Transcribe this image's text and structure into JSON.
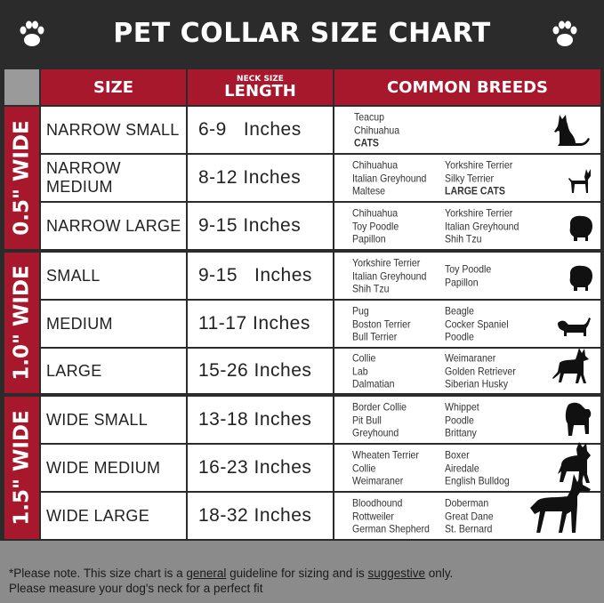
{
  "title": "PET COLLAR SIZE CHART",
  "colors": {
    "header_red": "#a8182c",
    "title_bg": "#2b2b2b",
    "footer_bg": "#8b8b8b"
  },
  "headers": {
    "size": "SIZE",
    "length_small": "NECK SIZE",
    "length": "LENGTH",
    "breeds": "COMMON BREEDS"
  },
  "groups": [
    {
      "label": "0.5\" WIDE"
    },
    {
      "label": "1.0\" WIDE"
    },
    {
      "label": "1.5\" WIDE"
    }
  ],
  "rows": [
    {
      "size": "NARROW SMALL",
      "length": "6-9   Inches",
      "col1": [
        "Teacup",
        "Chihuahua",
        "CATS"
      ],
      "col2": [],
      "icon": "cat-silhouette-icon"
    },
    {
      "size": "NARROW MEDIUM",
      "length": "8-12 Inches",
      "col1": [
        "Chihuahua",
        "Italian Greyhound",
        "Maltese"
      ],
      "col2": [
        "Yorkshire Terrier",
        "Silky Terrier",
        "LARGE CATS"
      ],
      "icon": "chihuahua-silhouette-icon"
    },
    {
      "size": "NARROW LARGE",
      "length": "9-15 Inches",
      "col1": [
        "Chihuahua",
        "Toy Poodle",
        "Papillon"
      ],
      "col2": [
        "Yorkshire Terrier",
        "Italian Greyhound",
        "Shih Tzu"
      ],
      "icon": "pomeranian-silhouette-icon"
    },
    {
      "size": "SMALL",
      "length": "9-15   Inches",
      "col1": [
        "Yorkshire Terrier",
        "Italian Greyhound",
        "Shih Tzu"
      ],
      "col2": [
        "Toy Poodle",
        "Papillon"
      ],
      "icon": "pomeranian-silhouette-icon"
    },
    {
      "size": "MEDIUM",
      "length": "11-17 Inches",
      "col1": [
        "Pug",
        "Boston Terrier",
        "Bull Terrier"
      ],
      "col2": [
        "Beagle",
        "Cocker Spaniel",
        "Poodle"
      ],
      "icon": "dachshund-silhouette-icon"
    },
    {
      "size": "LARGE",
      "length": "15-26 Inches",
      "col1": [
        "Collie",
        "Lab",
        "Dalmatian"
      ],
      "col2": [
        "Weimaraner",
        "Golden Retriever",
        "Siberian Husky"
      ],
      "icon": "shepherd-silhouette-icon"
    },
    {
      "size": "WIDE SMALL",
      "length": "13-18 Inches",
      "col1": [
        "Border Collie",
        "Pit Bull",
        "Greyhound"
      ],
      "col2": [
        "Whippet",
        "Poodle",
        "Brittany"
      ],
      "icon": "bulldog-silhouette-icon"
    },
    {
      "size": "WIDE MEDIUM",
      "length": "16-23 Inches",
      "col1": [
        "Wheaten Terrier",
        "Collie",
        "Weimaraner"
      ],
      "col2": [
        "Boxer",
        "Airedale",
        "English Bulldog"
      ],
      "icon": "pitbull-silhouette-icon"
    },
    {
      "size": "WIDE LARGE",
      "length": "18-32 Inches",
      "col1": [
        "Bloodhound",
        "Rottweiler",
        "German Shepherd"
      ],
      "col2": [
        "Doberman",
        "Great Dane",
        "St. Bernard"
      ],
      "icon": "doberman-silhouette-icon"
    }
  ],
  "footer": {
    "p1": "*Please note. This size chart is a ",
    "u1": "general",
    "p2": " guideline for sizing and is ",
    "u2": "suggestive",
    "p3": " only.",
    "line2": "Please measure your dog's neck for a perfect fit"
  }
}
